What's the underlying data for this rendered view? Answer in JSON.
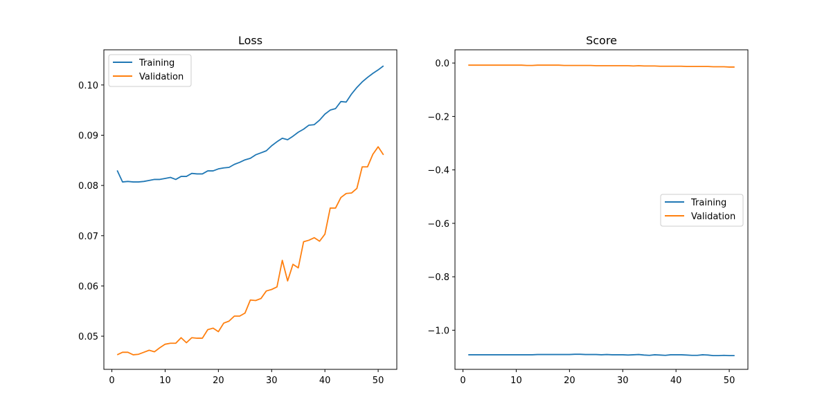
{
  "chart_data": [
    {
      "type": "line",
      "title": "Loss",
      "xlabel": "",
      "ylabel": "",
      "xlim": [
        -1.5,
        53.5
      ],
      "ylim": [
        0.0434,
        0.107
      ],
      "xticks": [
        0,
        10,
        20,
        30,
        40,
        50
      ],
      "yticks": [
        0.05,
        0.06,
        0.07,
        0.08,
        0.09,
        0.1
      ],
      "ytick_labels": [
        "0.05",
        "0.06",
        "0.07",
        "0.08",
        "0.09",
        "0.10"
      ],
      "grid": false,
      "legend_position": "top-left",
      "series": [
        {
          "name": "Training",
          "color": "#1f77b4",
          "x": [
            1,
            2,
            3,
            4,
            5,
            6,
            7,
            8,
            9,
            10,
            11,
            12,
            13,
            14,
            15,
            16,
            17,
            18,
            19,
            20,
            21,
            22,
            23,
            24,
            25,
            26,
            27,
            28,
            29,
            30,
            31,
            32,
            33,
            34,
            35,
            36,
            37,
            38,
            39,
            40,
            41,
            42,
            43,
            44,
            45,
            46,
            47,
            48,
            49,
            50,
            51
          ],
          "values": [
            0.083,
            0.0807,
            0.0808,
            0.0807,
            0.0807,
            0.0808,
            0.081,
            0.0812,
            0.0812,
            0.0814,
            0.0816,
            0.0812,
            0.0818,
            0.0818,
            0.0824,
            0.0823,
            0.0823,
            0.0829,
            0.0829,
            0.0833,
            0.0835,
            0.0836,
            0.0842,
            0.0846,
            0.0851,
            0.0854,
            0.0861,
            0.0865,
            0.0869,
            0.0879,
            0.0887,
            0.0894,
            0.0891,
            0.0898,
            0.0906,
            0.0912,
            0.092,
            0.0921,
            0.093,
            0.0942,
            0.095,
            0.0953,
            0.0967,
            0.0966,
            0.0982,
            0.0995,
            0.1006,
            0.1015,
            0.1023,
            0.103,
            0.1038
          ]
        },
        {
          "name": "Validation",
          "color": "#ff7f0e",
          "x": [
            1,
            2,
            3,
            4,
            5,
            6,
            7,
            8,
            9,
            10,
            11,
            12,
            13,
            14,
            15,
            16,
            17,
            18,
            19,
            20,
            21,
            22,
            23,
            24,
            25,
            26,
            27,
            28,
            29,
            30,
            31,
            32,
            33,
            34,
            35,
            36,
            37,
            38,
            39,
            40,
            41,
            42,
            43,
            44,
            45,
            46,
            47,
            48,
            49,
            50,
            51
          ],
          "values": [
            0.0463,
            0.0468,
            0.0468,
            0.0463,
            0.0464,
            0.0468,
            0.0472,
            0.0469,
            0.0477,
            0.0484,
            0.0486,
            0.0486,
            0.0497,
            0.0487,
            0.0497,
            0.0496,
            0.0496,
            0.0513,
            0.0516,
            0.0509,
            0.0526,
            0.053,
            0.054,
            0.054,
            0.0546,
            0.0572,
            0.0571,
            0.0575,
            0.059,
            0.0593,
            0.0598,
            0.0651,
            0.061,
            0.0643,
            0.0636,
            0.0688,
            0.0691,
            0.0696,
            0.0689,
            0.0703,
            0.0755,
            0.0755,
            0.0776,
            0.0784,
            0.0785,
            0.0794,
            0.0837,
            0.0837,
            0.0862,
            0.0877,
            0.0861
          ]
        }
      ]
    },
    {
      "type": "line",
      "title": "Score",
      "xlabel": "",
      "ylabel": "",
      "xlim": [
        -1.5,
        53.5
      ],
      "ylim": [
        -1.1465,
        0.0495
      ],
      "xticks": [
        0,
        10,
        20,
        30,
        40,
        50
      ],
      "yticks": [
        0.0,
        -0.2,
        -0.4,
        -0.6,
        -0.8,
        -1.0
      ],
      "ytick_labels": [
        "0.0",
        "−0.2",
        "−0.4",
        "−0.6",
        "−0.8",
        "−1.0"
      ],
      "grid": false,
      "legend_position": "center-right",
      "series": [
        {
          "name": "Training",
          "color": "#1f77b4",
          "x": [
            1,
            2,
            3,
            4,
            5,
            6,
            7,
            8,
            9,
            10,
            11,
            12,
            13,
            14,
            15,
            16,
            17,
            18,
            19,
            20,
            21,
            22,
            23,
            24,
            25,
            26,
            27,
            28,
            29,
            30,
            31,
            32,
            33,
            34,
            35,
            36,
            37,
            38,
            39,
            40,
            41,
            42,
            43,
            44,
            45,
            46,
            47,
            48,
            49,
            50,
            51
          ],
          "values": [
            -1.092,
            -1.092,
            -1.092,
            -1.092,
            -1.092,
            -1.092,
            -1.092,
            -1.092,
            -1.092,
            -1.092,
            -1.092,
            -1.092,
            -1.092,
            -1.091,
            -1.091,
            -1.091,
            -1.091,
            -1.091,
            -1.091,
            -1.091,
            -1.09,
            -1.09,
            -1.091,
            -1.091,
            -1.091,
            -1.092,
            -1.091,
            -1.092,
            -1.092,
            -1.092,
            -1.093,
            -1.092,
            -1.091,
            -1.093,
            -1.094,
            -1.092,
            -1.093,
            -1.094,
            -1.092,
            -1.092,
            -1.092,
            -1.093,
            -1.094,
            -1.094,
            -1.092,
            -1.093,
            -1.095,
            -1.095,
            -1.094,
            -1.095,
            -1.095
          ]
        },
        {
          "name": "Validation",
          "color": "#ff7f0e",
          "x": [
            1,
            2,
            3,
            4,
            5,
            6,
            7,
            8,
            9,
            10,
            11,
            12,
            13,
            14,
            15,
            16,
            17,
            18,
            19,
            20,
            21,
            22,
            23,
            24,
            25,
            26,
            27,
            28,
            29,
            30,
            31,
            32,
            33,
            34,
            35,
            36,
            37,
            38,
            39,
            40,
            41,
            42,
            43,
            44,
            45,
            46,
            47,
            48,
            49,
            50,
            51
          ],
          "values": [
            -0.008,
            -0.008,
            -0.008,
            -0.008,
            -0.008,
            -0.008,
            -0.008,
            -0.008,
            -0.008,
            -0.008,
            -0.008,
            -0.009,
            -0.009,
            -0.008,
            -0.008,
            -0.008,
            -0.008,
            -0.008,
            -0.009,
            -0.009,
            -0.009,
            -0.009,
            -0.009,
            -0.009,
            -0.01,
            -0.01,
            -0.01,
            -0.01,
            -0.01,
            -0.01,
            -0.01,
            -0.011,
            -0.01,
            -0.011,
            -0.011,
            -0.011,
            -0.012,
            -0.012,
            -0.012,
            -0.012,
            -0.012,
            -0.013,
            -0.013,
            -0.013,
            -0.013,
            -0.013,
            -0.014,
            -0.014,
            -0.014,
            -0.015,
            -0.015
          ]
        }
      ]
    }
  ]
}
